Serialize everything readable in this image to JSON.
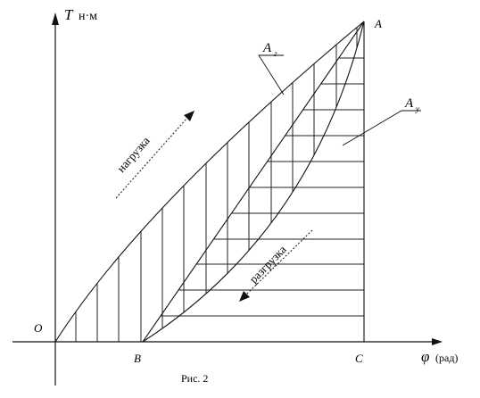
{
  "figure": {
    "caption": "Рис. 2",
    "axes": {
      "y_symbol": "T",
      "y_unit": "н·м",
      "x_symbol": "φ",
      "x_unit": "(рад)"
    },
    "points": {
      "origin": "O",
      "a": "A",
      "b": "B",
      "c": "C"
    },
    "areas": {
      "elastic_label": "A",
      "elastic_subscript": "г",
      "residual_label": "A",
      "residual_subscript": "у"
    },
    "arrows": {
      "loading": "нагрузка",
      "unloading": "разгрузка"
    }
  }
}
